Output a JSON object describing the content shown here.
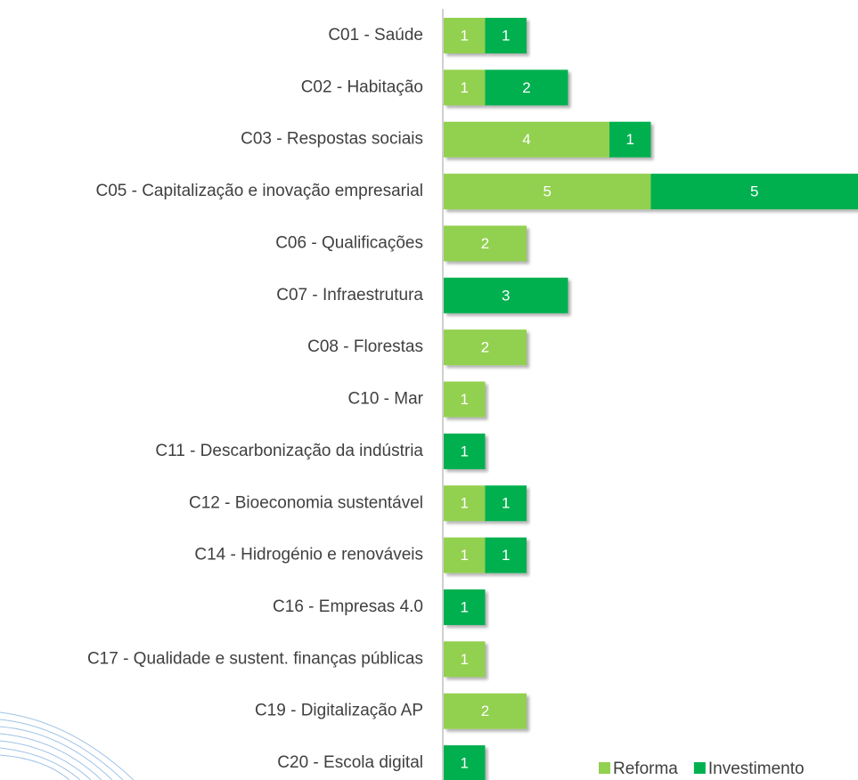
{
  "chart_data": {
    "type": "stacked-barh",
    "categories": [
      "C01 - Saúde",
      "C02 - Habitação",
      "C03 - Respostas sociais",
      "C05 - Capitalização e inovação empresarial",
      "C06 - Qualificações",
      "C07 - Infraestrutura",
      "C08 - Florestas",
      "C10 - Mar",
      "C11 - Descarbonização da indústria",
      "C12 - Bioeconomia sustentável",
      "C14 - Hidrogénio e renováveis",
      "C16 - Empresas 4.0",
      "C17 - Qualidade e sustent. finanças públicas",
      "C19 - Digitalização AP",
      "C20 - Escola digital"
    ],
    "series": [
      {
        "name": "Reforma",
        "color": "#92d050",
        "values": [
          1,
          1,
          4,
          5,
          2,
          null,
          2,
          1,
          null,
          1,
          1,
          null,
          1,
          2,
          null
        ]
      },
      {
        "name": "Investimento",
        "color": "#00b050",
        "values": [
          1,
          2,
          1,
          5,
          null,
          3,
          null,
          null,
          1,
          1,
          1,
          1,
          null,
          null,
          1
        ]
      }
    ],
    "legend": "bottom-right"
  }
}
